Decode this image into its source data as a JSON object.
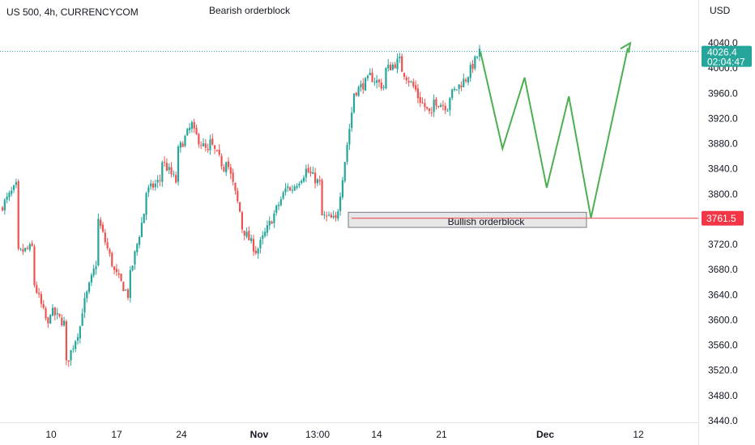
{
  "header": {
    "symbol_title": "US 500, 4h, CURRENCYCOM",
    "top_annotation": "Bearish orderblock"
  },
  "chart_data": {
    "type": "candlestick",
    "title": "US 500, 4h, CURRENCYCOM",
    "y_axis": {
      "unit_label": "USD",
      "ticks": [
        4040,
        4000,
        3960,
        3920,
        3880,
        3840,
        3800,
        3760,
        3720,
        3680,
        3640,
        3600,
        3560,
        3520,
        3480,
        3440
      ],
      "tick_labels": [
        "4040.0",
        "4000.0",
        "3960.0",
        "3920.0",
        "3880.0",
        "3840.0",
        "3800.0",
        "3760.0",
        "3720.0",
        "3680.0",
        "3640.0",
        "3600.0",
        "3560.0",
        "3520.0",
        "3480.0",
        "3440.0"
      ],
      "ylim": [
        3435,
        4090
      ]
    },
    "x_axis": {
      "tick_labels": [
        "10",
        "17",
        "24",
        "Nov",
        "13:00",
        "14",
        "21",
        "Dec",
        "12"
      ],
      "tick_bold": [
        false,
        false,
        false,
        true,
        false,
        false,
        false,
        true,
        false
      ]
    },
    "colors": {
      "up": "#26a69a",
      "down": "#ef5350",
      "projection": "#4caf50",
      "last_price": "#26a69a",
      "support_line": "#f23645"
    },
    "last_price": {
      "value": 4026.4,
      "label": "4026.4",
      "countdown": "02:04:47"
    },
    "support": {
      "value": 3761.5,
      "label": "3761.5"
    },
    "bullish_orderblock": {
      "label": "Bullish orderblock",
      "top": 3771,
      "bottom": 3747
    },
    "projection_path": [
      [
        0,
        4026
      ],
      [
        3,
        3872
      ],
      [
        6,
        3985
      ],
      [
        9,
        3810
      ],
      [
        12,
        3955
      ],
      [
        15,
        3762
      ],
      [
        20,
        4032
      ]
    ],
    "projection_arrow_tip": [
      20,
      4032
    ],
    "candle_waypoints": [
      [
        3777,
        3812
      ],
      [
        3705,
        3715
      ],
      [
        3668,
        3590
      ],
      [
        3618,
        3595
      ],
      [
        3520,
        3590
      ],
      [
        3604,
        3690
      ],
      [
        3770,
        3690
      ],
      [
        3683,
        3640
      ],
      [
        3655,
        3770
      ],
      [
        3800,
        3822
      ],
      [
        3858,
        3820
      ],
      [
        3862,
        3910
      ],
      [
        3902,
        3865
      ],
      [
        3888,
        3842
      ],
      [
        3872,
        3772
      ],
      [
        3752,
        3710
      ],
      [
        3706,
        3760
      ],
      [
        3760,
        3815
      ],
      [
        3800,
        3832
      ],
      [
        3842,
        3816
      ],
      [
        3766,
        3758
      ],
      [
        3752,
        3930
      ],
      [
        3958,
        3980
      ],
      [
        3990,
        3970
      ],
      [
        3995,
        4012
      ],
      [
        4003,
        3965
      ],
      [
        3960,
        3922
      ],
      [
        3951,
        3938
      ],
      [
        3952,
        3980
      ],
      [
        3976,
        4026
      ]
    ]
  }
}
